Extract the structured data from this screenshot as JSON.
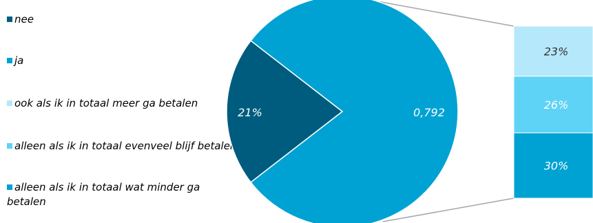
{
  "colors": {
    "nee": "#005C7E",
    "ja": "#00A2D3",
    "breakdown_1": "#B5E8FA",
    "breakdown_2": "#5ED3F5",
    "breakdown_3": "#00A2D3",
    "connector": "#A6A6A6",
    "label_light": "#FFFFFF",
    "label_dark": "#333333"
  },
  "chart_data": {
    "type": "pie",
    "subtype": "pie-of-pie (bar breakdown)",
    "legend": [
      {
        "label": "nee",
        "color": "#005C7E"
      },
      {
        "label": "ja",
        "color": "#00A2D3"
      },
      {
        "label": "ook als ik in totaal meer ga betalen",
        "color": "#B5E8FA"
      },
      {
        "label": "alleen als ik in totaal evenveel blijf betalen",
        "color": "#5ED3F5"
      },
      {
        "label": "alleen als ik in totaal wat minder ga betalen",
        "color": "#00A2D3"
      }
    ],
    "pie": {
      "slices": [
        {
          "name": "nee",
          "value": 0.21,
          "label": "21%",
          "color": "#005C7E"
        },
        {
          "name": "ja",
          "value": 0.792,
          "label": "0,792",
          "color": "#00A2D3"
        }
      ]
    },
    "breakdown": [
      {
        "name": "ook als ik in totaal meer ga betalen",
        "value": 0.23,
        "label": "23%",
        "color": "#B5E8FA"
      },
      {
        "name": "alleen als ik in totaal evenveel blijf betalen",
        "value": 0.26,
        "label": "26%",
        "color": "#5ED3F5"
      },
      {
        "name": "alleen als ik in totaal wat minder ga betalen",
        "value": 0.3,
        "label": "30%",
        "color": "#00A2D3"
      }
    ],
    "legend_position": "left"
  }
}
